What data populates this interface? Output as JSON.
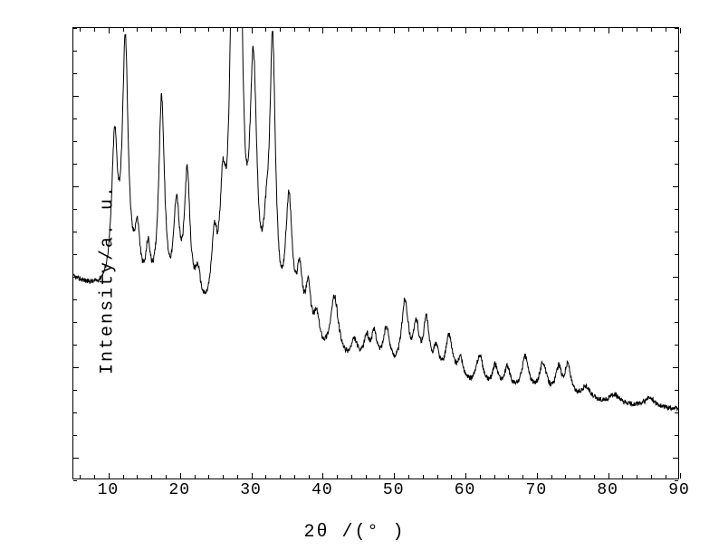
{
  "chart": {
    "type": "line",
    "background_color": "#ffffff",
    "line_color": "#000000",
    "line_width": 1.0,
    "xlabel": "2θ /(° )",
    "ylabel": "Intensity/a. u.",
    "label_fontsize": 20,
    "tick_fontsize": 18,
    "xlim": [
      5,
      90
    ],
    "ylim": [
      0,
      100
    ],
    "xtick_step": 10,
    "xtick_labels": [
      "10",
      "20",
      "30",
      "40",
      "50",
      "60",
      "70",
      "80",
      "90"
    ],
    "y_tick_positions": [
      5,
      25,
      45,
      65,
      85
    ],
    "top_tick_positions": [
      10,
      20,
      30,
      40,
      50,
      60,
      70,
      80,
      90
    ],
    "baseline_start": 28,
    "baseline_end": 13,
    "noise_amplitude": 1.6,
    "peaks": [
      {
        "x": 10.8,
        "h": 32,
        "w": 0.5
      },
      {
        "x": 12.3,
        "h": 55,
        "w": 0.5
      },
      {
        "x": 14.0,
        "h": 13,
        "w": 0.5
      },
      {
        "x": 15.5,
        "h": 10,
        "w": 0.4
      },
      {
        "x": 17.4,
        "h": 46,
        "w": 0.5
      },
      {
        "x": 19.5,
        "h": 22,
        "w": 0.5
      },
      {
        "x": 21.0,
        "h": 30,
        "w": 0.5
      },
      {
        "x": 22.5,
        "h": 8,
        "w": 0.5
      },
      {
        "x": 24.8,
        "h": 15,
        "w": 0.5
      },
      {
        "x": 26.0,
        "h": 23,
        "w": 0.5
      },
      {
        "x": 27.5,
        "h": 87,
        "w": 0.5
      },
      {
        "x": 28.3,
        "h": 90,
        "w": 0.5
      },
      {
        "x": 30.3,
        "h": 55,
        "w": 0.6
      },
      {
        "x": 32.1,
        "h": 12,
        "w": 0.5
      },
      {
        "x": 33.0,
        "h": 62,
        "w": 0.5
      },
      {
        "x": 35.3,
        "h": 30,
        "w": 0.6
      },
      {
        "x": 36.8,
        "h": 14,
        "w": 0.5
      },
      {
        "x": 38.0,
        "h": 12,
        "w": 0.5
      },
      {
        "x": 39.2,
        "h": 7,
        "w": 0.5
      },
      {
        "x": 41.7,
        "h": 14,
        "w": 0.7
      },
      {
        "x": 44.5,
        "h": 5,
        "w": 0.6
      },
      {
        "x": 46.2,
        "h": 6,
        "w": 0.5
      },
      {
        "x": 47.3,
        "h": 7,
        "w": 0.5
      },
      {
        "x": 49.0,
        "h": 9,
        "w": 0.6
      },
      {
        "x": 51.6,
        "h": 16,
        "w": 0.6
      },
      {
        "x": 53.2,
        "h": 10,
        "w": 0.5
      },
      {
        "x": 54.6,
        "h": 12,
        "w": 0.5
      },
      {
        "x": 56.0,
        "h": 6,
        "w": 0.5
      },
      {
        "x": 57.8,
        "h": 10,
        "w": 0.6
      },
      {
        "x": 59.4,
        "h": 5,
        "w": 0.5
      },
      {
        "x": 62.1,
        "h": 7,
        "w": 0.6
      },
      {
        "x": 64.3,
        "h": 5,
        "w": 0.5
      },
      {
        "x": 66.0,
        "h": 5,
        "w": 0.5
      },
      {
        "x": 68.5,
        "h": 8,
        "w": 0.6
      },
      {
        "x": 71.0,
        "h": 7,
        "w": 0.6
      },
      {
        "x": 73.2,
        "h": 6,
        "w": 0.5
      },
      {
        "x": 74.5,
        "h": 7,
        "w": 0.5
      },
      {
        "x": 77.0,
        "h": 3,
        "w": 0.8
      },
      {
        "x": 81.0,
        "h": 2,
        "w": 0.8
      },
      {
        "x": 86.0,
        "h": 2,
        "w": 0.8
      }
    ]
  }
}
